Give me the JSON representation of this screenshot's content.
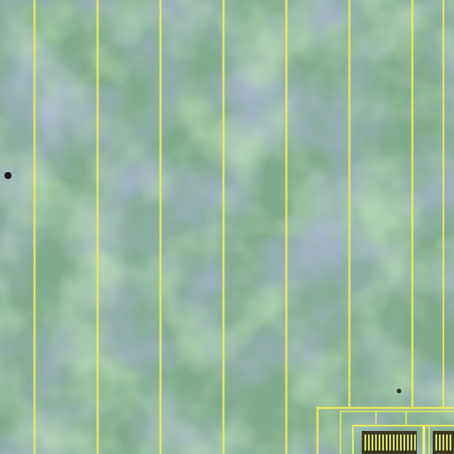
{
  "image": {
    "subject": "aerial-field-with-parallel-lines",
    "palette": {
      "field_green": "#7fb07a",
      "field_violet": "#6e78b8",
      "field_teal": "#6f9a8a",
      "line_yellow": "#e8ef5a",
      "dark_spot": "#1a1a1a"
    },
    "line_count": 8,
    "features": [
      {
        "name": "vertical-lines"
      },
      {
        "name": "corner-grid-structure"
      },
      {
        "name": "dark-spot"
      },
      {
        "name": "small-dark-spot"
      }
    ]
  }
}
